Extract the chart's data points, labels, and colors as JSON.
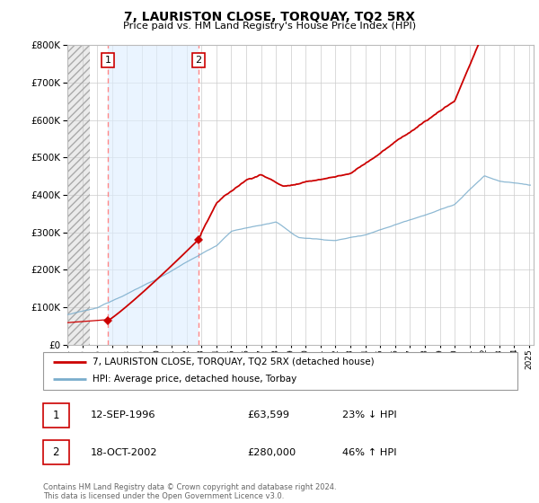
{
  "title": "7, LAURISTON CLOSE, TORQUAY, TQ2 5RX",
  "subtitle": "Price paid vs. HM Land Registry's House Price Index (HPI)",
  "ylim": [
    0,
    800000
  ],
  "yticks": [
    0,
    100000,
    200000,
    300000,
    400000,
    500000,
    600000,
    700000,
    800000
  ],
  "ytick_labels": [
    "£0",
    "£100K",
    "£200K",
    "£300K",
    "£400K",
    "£500K",
    "£600K",
    "£700K",
    "£800K"
  ],
  "sale1_year": 1996.71,
  "sale1_price": 63599,
  "sale1_label": "1",
  "sale2_year": 2002.79,
  "sale2_price": 280000,
  "sale2_label": "2",
  "property_line_color": "#cc0000",
  "hpi_line_color": "#7aadcc",
  "dashed_vline_color": "#ff8888",
  "legend_property": "7, LAURISTON CLOSE, TORQUAY, TQ2 5RX (detached house)",
  "legend_hpi": "HPI: Average price, detached house, Torbay",
  "footnote": "Contains HM Land Registry data © Crown copyright and database right 2024.\nThis data is licensed under the Open Government Licence v3.0.",
  "table_row1": [
    "1",
    "12-SEP-1996",
    "£63,599",
    "23% ↓ HPI"
  ],
  "table_row2": [
    "2",
    "18-OCT-2002",
    "£280,000",
    "46% ↑ HPI"
  ]
}
